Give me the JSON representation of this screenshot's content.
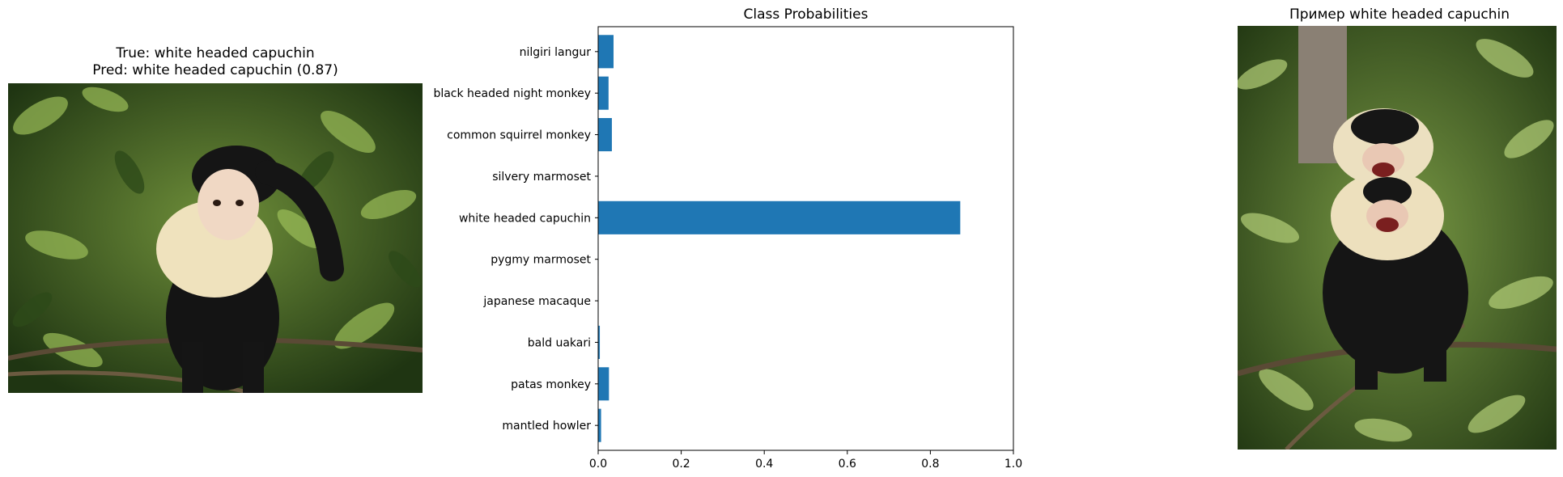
{
  "left_panel": {
    "true_label": "True: white headed capuchin",
    "pred_label": "Pred: white headed capuchin (0.87)"
  },
  "right_panel": {
    "title": "Пример white headed capuchin"
  },
  "chart_data": {
    "type": "bar",
    "orientation": "horizontal",
    "title": "Class Probabilities",
    "xlabel": "",
    "ylabel": "",
    "xlim": [
      0,
      1.0
    ],
    "x_ticks": [
      "0.0",
      "0.2",
      "0.4",
      "0.6",
      "0.8",
      "1.0"
    ],
    "grid": false,
    "bar_color": "#1f77b4",
    "categories": [
      "nilgiri langur",
      "black headed night monkey",
      "common squirrel monkey",
      "silvery marmoset",
      "white headed capuchin",
      "pygmy marmoset",
      "japanese macaque",
      "bald uakari",
      "patas monkey",
      "mantled howler"
    ],
    "values": [
      0.037,
      0.025,
      0.033,
      0.001,
      0.872,
      0.001,
      0.001,
      0.004,
      0.026,
      0.007
    ]
  }
}
